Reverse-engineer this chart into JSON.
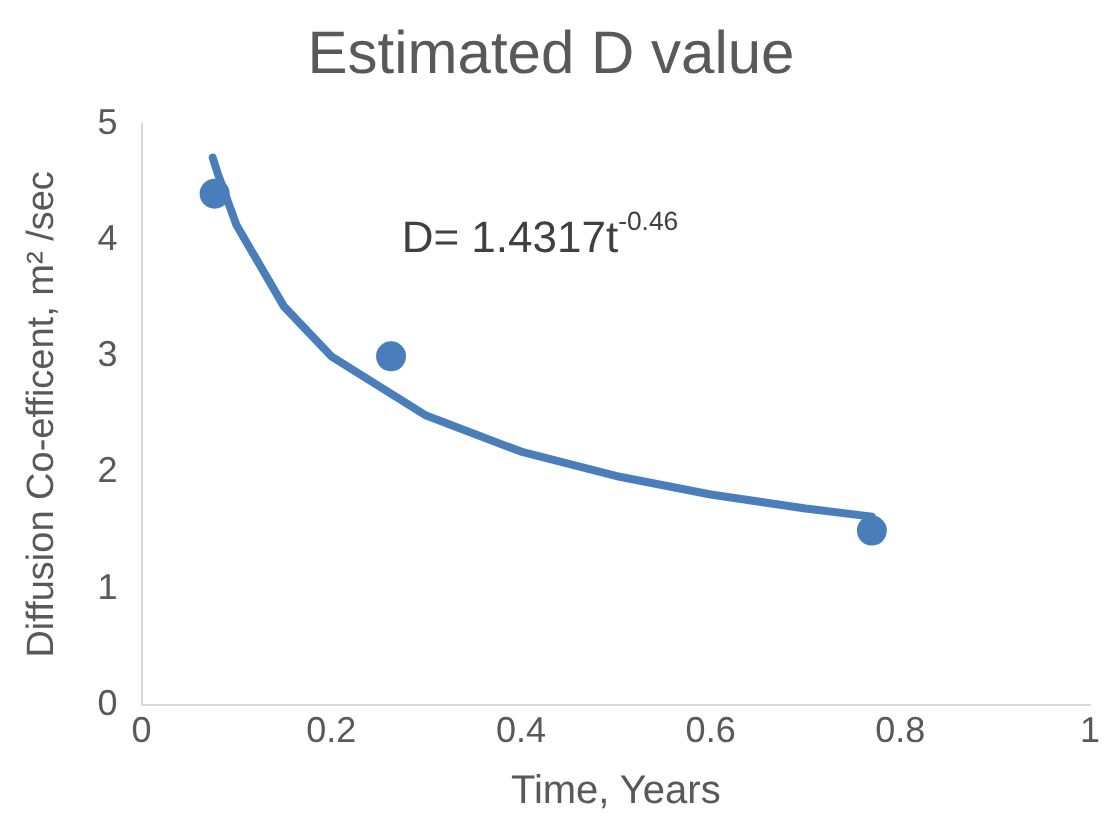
{
  "chart_data": {
    "type": "scatter",
    "title": "Estimated D value",
    "xlabel": "Time, Years",
    "ylabel": "Diffusion Co-efficent, m² /sec",
    "xlim": [
      0,
      1
    ],
    "xticks": [
      0,
      0.2,
      0.4,
      0.6,
      0.8,
      1
    ],
    "ylim": [
      0,
      5
    ],
    "yticks": [
      0,
      1,
      2,
      3,
      4,
      5
    ],
    "grid": false,
    "legend": false,
    "annotations": [
      "D= 1.4317t$^{-0.46}$"
    ],
    "series": [
      {
        "color": "#4a7ebb",
        "marker": "circle",
        "x": [
          0.077,
          0.263,
          0.77
        ],
        "values": [
          4.4,
          3.0,
          1.5
        ]
      },
      {
        "type": "line",
        "color": "#4a7ebb",
        "marker": "none",
        "line_style": "solid",
        "x": [
          0.075,
          0.08,
          0.1,
          0.15,
          0.2,
          0.3,
          0.4,
          0.5,
          0.6,
          0.7,
          0.77
        ],
        "values": [
          4.71,
          4.58,
          4.13,
          3.43,
          3.0,
          2.49,
          2.18,
          1.97,
          1.81,
          1.69,
          1.62
        ]
      }
    ]
  }
}
